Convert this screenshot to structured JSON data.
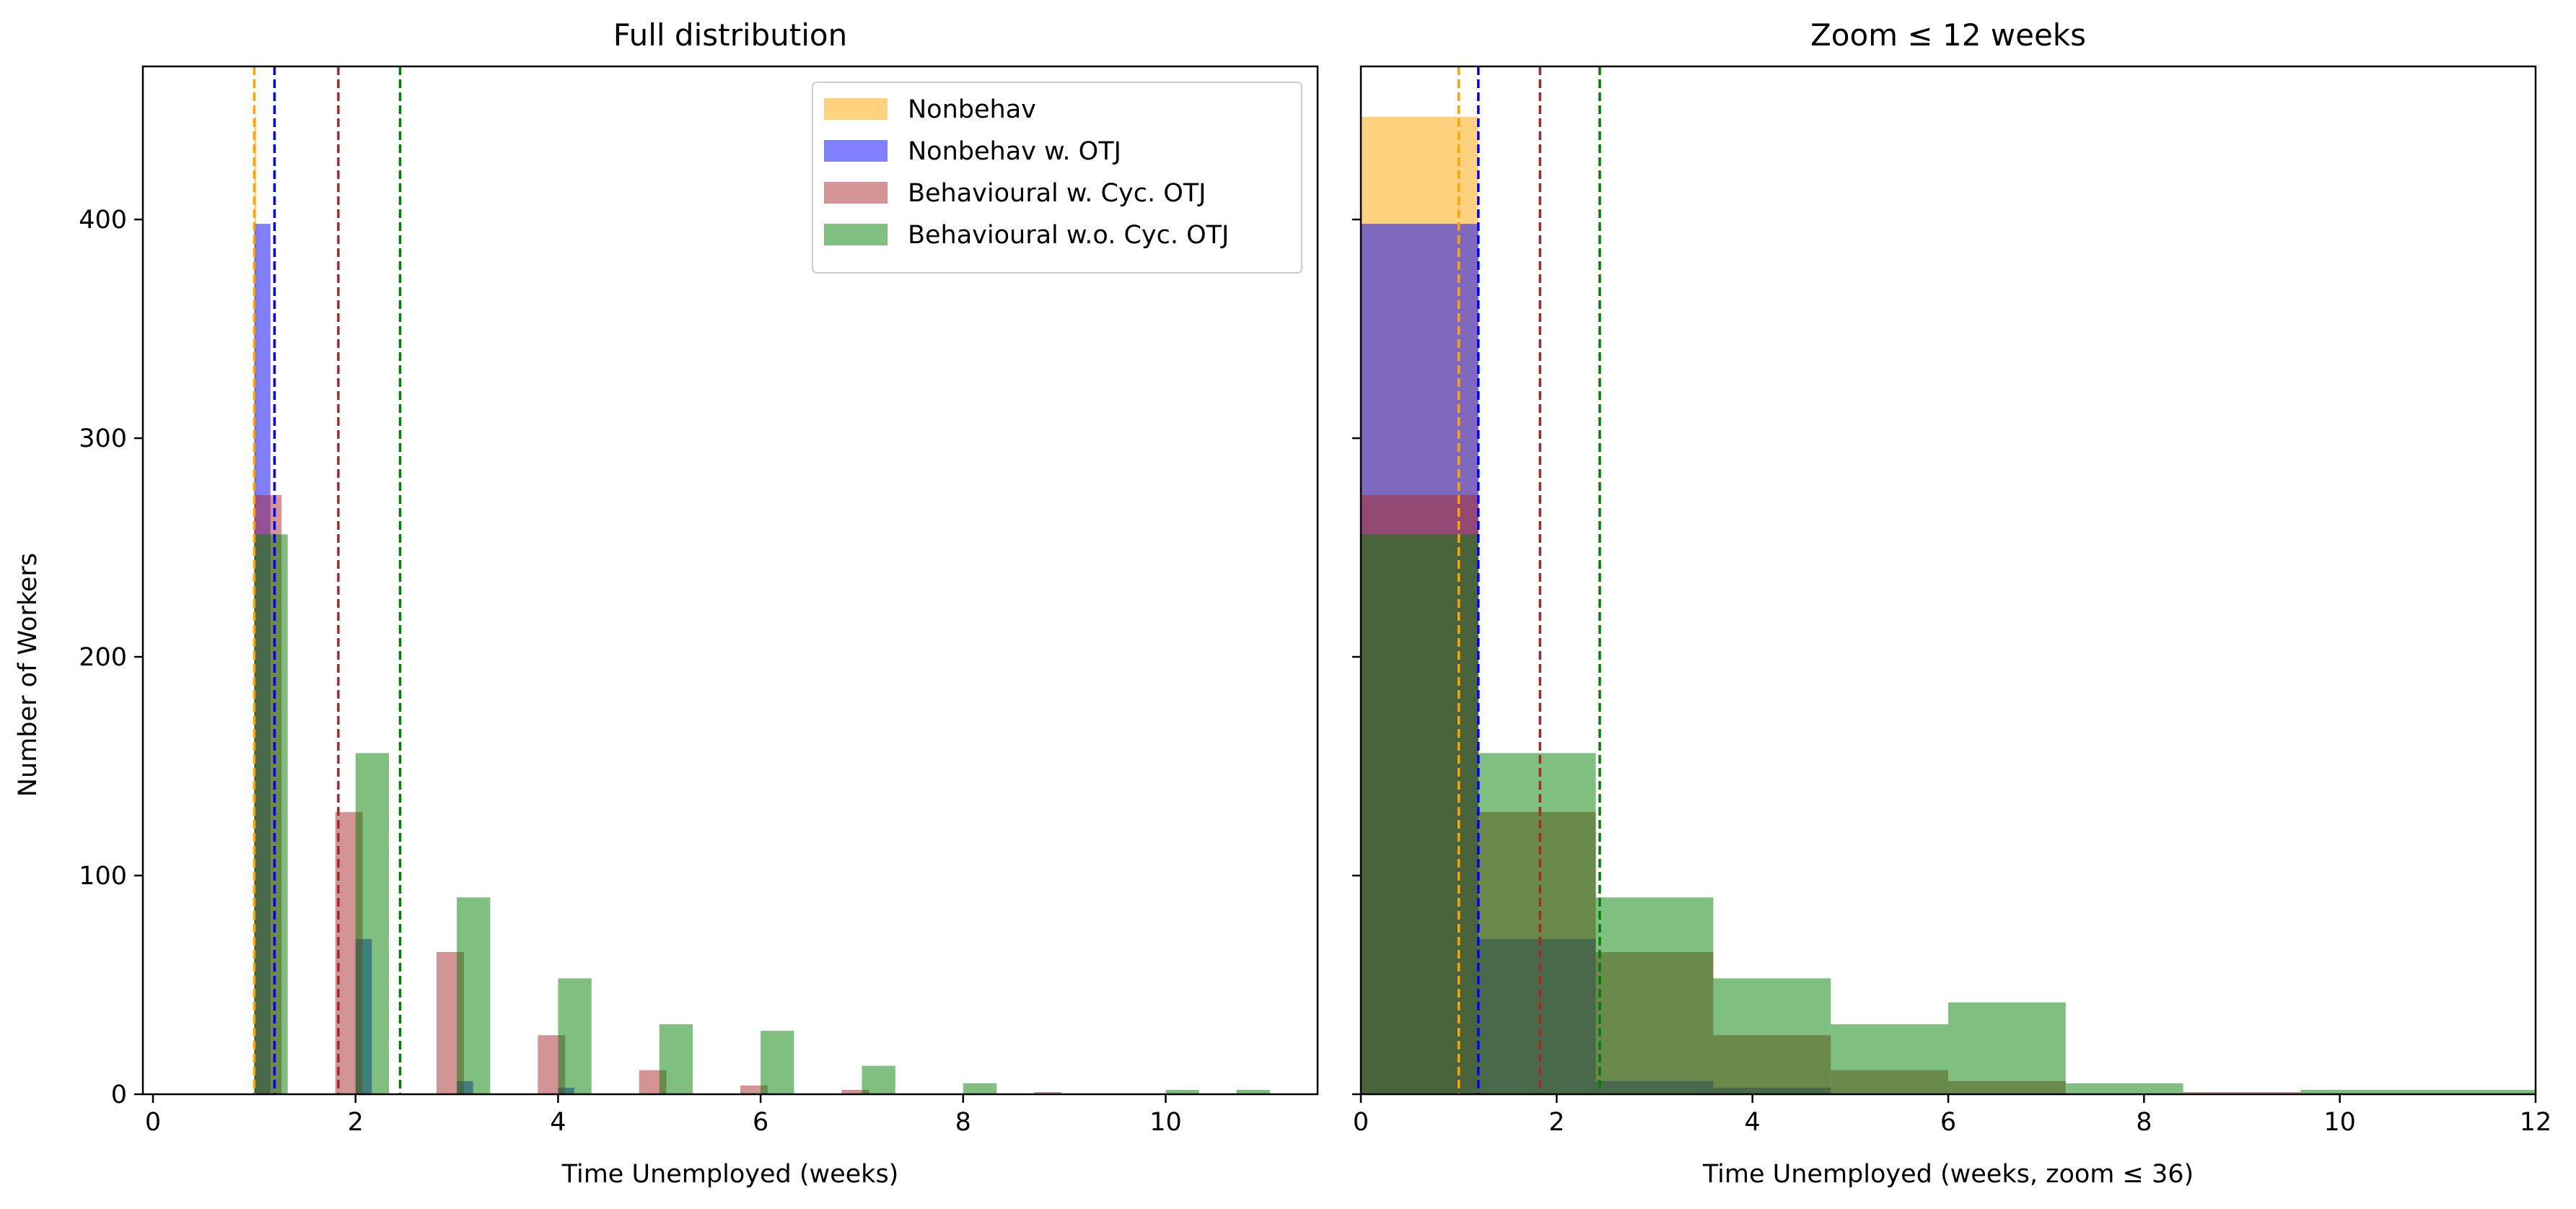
{
  "figure": {
    "ylabel": "Number of Workers"
  },
  "legend_colors": {
    "Nonbehav": "#ffa500",
    "Nonbehav w. OTJ": "#0000ff",
    "Behavioural w. Cyc. OTJ": "#a52a2a",
    "Behavioural w.o. Cyc. OTJ": "#008000"
  },
  "chart_data": [
    {
      "type": "bar",
      "title": "Full distribution",
      "xlabel": "Time Unemployed (weeks)",
      "ylabel": "Number of Workers",
      "xlim": [
        -0.1,
        11.5
      ],
      "ylim": [
        0,
        470
      ],
      "xticks": [
        0,
        2,
        4,
        6,
        8,
        10
      ],
      "yticks": [
        0,
        100,
        200,
        300,
        400
      ],
      "legend": {
        "placement": "top-right",
        "entries": [
          "Nonbehav",
          "Nonbehav w. OTJ",
          "Behavioural w. Cyc. OTJ",
          "Behavioural w.o. Cyc. OTJ"
        ]
      },
      "series": [
        {
          "name": "Nonbehav",
          "color": "#ffa500",
          "opacity": 0.5,
          "bins": [
            {
              "x0": 1.0,
              "x1": 1.02,
              "value": 447
            }
          ]
        },
        {
          "name": "Nonbehav w. OTJ",
          "color": "#0000ff",
          "opacity": 0.5,
          "bins": [
            {
              "x0": 1.0,
              "x1": 1.16,
              "value": 398
            },
            {
              "x0": 2.0,
              "x1": 2.16,
              "value": 71
            },
            {
              "x0": 3.0,
              "x1": 3.16,
              "value": 6
            },
            {
              "x0": 4.0,
              "x1": 4.16,
              "value": 3
            }
          ]
        },
        {
          "name": "Behavioural w. Cyc. OTJ",
          "color": "#a52a2a",
          "opacity": 0.5,
          "bins": [
            {
              "x0": 1.0,
              "x1": 1.27,
              "value": 274
            },
            {
              "x0": 1.8,
              "x1": 2.07,
              "value": 129
            },
            {
              "x0": 2.8,
              "x1": 3.07,
              "value": 65
            },
            {
              "x0": 3.8,
              "x1": 4.07,
              "value": 27
            },
            {
              "x0": 4.8,
              "x1": 5.07,
              "value": 11
            },
            {
              "x0": 5.8,
              "x1": 6.07,
              "value": 4
            },
            {
              "x0": 6.8,
              "x1": 7.07,
              "value": 2
            },
            {
              "x0": 8.7,
              "x1": 8.97,
              "value": 1
            }
          ]
        },
        {
          "name": "Behavioural w.o. Cyc. OTJ",
          "color": "#008000",
          "opacity": 0.5,
          "bins": [
            {
              "x0": 1.0,
              "x1": 1.33,
              "value": 256
            },
            {
              "x0": 2.0,
              "x1": 2.33,
              "value": 156
            },
            {
              "x0": 3.0,
              "x1": 3.33,
              "value": 90
            },
            {
              "x0": 4.0,
              "x1": 4.33,
              "value": 53
            },
            {
              "x0": 5.0,
              "x1": 5.33,
              "value": 32
            },
            {
              "x0": 6.0,
              "x1": 6.33,
              "value": 29
            },
            {
              "x0": 7.0,
              "x1": 7.33,
              "value": 13
            },
            {
              "x0": 8.0,
              "x1": 8.33,
              "value": 5
            },
            {
              "x0": 10.0,
              "x1": 10.33,
              "value": 2
            },
            {
              "x0": 10.7,
              "x1": 11.03,
              "value": 2
            }
          ]
        }
      ],
      "vlines": [
        {
          "series": "Nonbehav",
          "x": 1.0,
          "color": "#ffa500"
        },
        {
          "series": "Nonbehav w. OTJ",
          "x": 1.2,
          "color": "#0000ff"
        },
        {
          "series": "Behavioural w. Cyc. OTJ",
          "x": 1.83,
          "color": "#a52a2a"
        },
        {
          "series": "Behavioural w.o. Cyc. OTJ",
          "x": 2.44,
          "color": "#008000"
        }
      ]
    },
    {
      "type": "bar",
      "title": "Zoom ≤ 12 weeks",
      "xlabel": "Time Unemployed (weeks, zoom ≤ 36)",
      "ylabel": "",
      "xlim": [
        0,
        12
      ],
      "ylim": [
        0,
        470
      ],
      "xticks": [
        0,
        2,
        4,
        6,
        8,
        10,
        12
      ],
      "yticks": [
        0,
        100,
        200,
        300,
        400
      ],
      "series": [
        {
          "name": "Nonbehav",
          "color": "#ffa500",
          "opacity": 0.5,
          "bins": [
            {
              "x0": 0,
              "x1": 1.2,
              "value": 447
            }
          ]
        },
        {
          "name": "Nonbehav w. OTJ",
          "color": "#0000ff",
          "opacity": 0.5,
          "bins": [
            {
              "x0": 0,
              "x1": 1.2,
              "value": 398
            },
            {
              "x0": 1.2,
              "x1": 2.4,
              "value": 71
            },
            {
              "x0": 2.4,
              "x1": 3.6,
              "value": 6
            },
            {
              "x0": 3.6,
              "x1": 4.8,
              "value": 3
            }
          ]
        },
        {
          "name": "Behavioural w. Cyc. OTJ",
          "color": "#a52a2a",
          "opacity": 0.5,
          "bins": [
            {
              "x0": 0,
              "x1": 1.2,
              "value": 274
            },
            {
              "x0": 1.2,
              "x1": 2.4,
              "value": 129
            },
            {
              "x0": 2.4,
              "x1": 3.6,
              "value": 65
            },
            {
              "x0": 3.6,
              "x1": 4.8,
              "value": 27
            },
            {
              "x0": 4.8,
              "x1": 6.0,
              "value": 11
            },
            {
              "x0": 6.0,
              "x1": 7.2,
              "value": 6
            },
            {
              "x0": 8.4,
              "x1": 9.6,
              "value": 1
            }
          ]
        },
        {
          "name": "Behavioural w.o. Cyc. OTJ",
          "color": "#008000",
          "opacity": 0.5,
          "bins": [
            {
              "x0": 0,
              "x1": 1.2,
              "value": 256
            },
            {
              "x0": 1.2,
              "x1": 2.4,
              "value": 156
            },
            {
              "x0": 2.4,
              "x1": 3.6,
              "value": 90
            },
            {
              "x0": 3.6,
              "x1": 4.8,
              "value": 53
            },
            {
              "x0": 4.8,
              "x1": 6.0,
              "value": 32
            },
            {
              "x0": 6.0,
              "x1": 7.2,
              "value": 42
            },
            {
              "x0": 7.2,
              "x1": 8.4,
              "value": 5
            },
            {
              "x0": 9.6,
              "x1": 10.8,
              "value": 2
            },
            {
              "x0": 10.8,
              "x1": 12.0,
              "value": 2
            }
          ]
        }
      ],
      "vlines": [
        {
          "series": "Nonbehav",
          "x": 1.0,
          "color": "#ffa500"
        },
        {
          "series": "Nonbehav w. OTJ",
          "x": 1.2,
          "color": "#0000ff"
        },
        {
          "series": "Behavioural w. Cyc. OTJ",
          "x": 1.83,
          "color": "#a52a2a"
        },
        {
          "series": "Behavioural w.o. Cyc. OTJ",
          "x": 2.44,
          "color": "#008000"
        }
      ]
    }
  ]
}
